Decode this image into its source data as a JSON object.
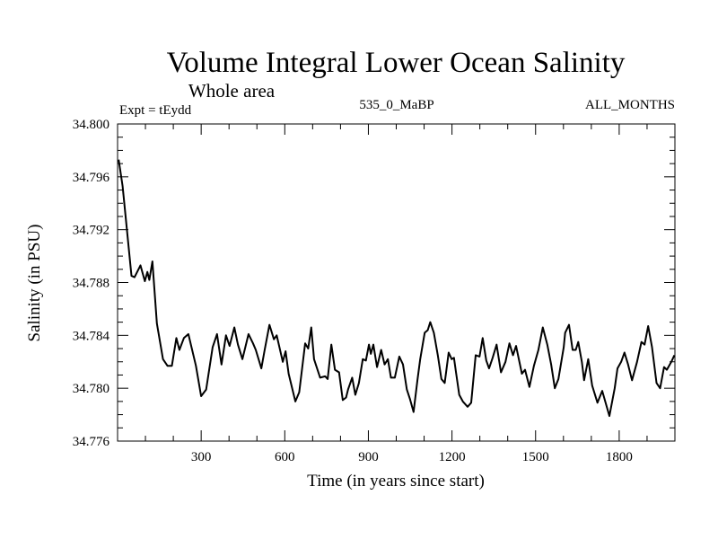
{
  "chart_data": {
    "type": "line",
    "title": "Volume Integral Lower Ocean Salinity",
    "subtitle": "Whole area",
    "annotations": {
      "experiment": "Expt = tEydd",
      "period": "535_0_MaBP",
      "months": "ALL_MONTHS"
    },
    "xlabel": "Time (in years since start)",
    "ylabel": "Salinity (in PSU)",
    "xlim": [
      0,
      2000
    ],
    "ylim": [
      34.776,
      34.8
    ],
    "x_ticks": [
      300,
      600,
      900,
      1200,
      1500,
      1800
    ],
    "x_tick_labels": [
      "300",
      "600",
      "900",
      "1200",
      "1500",
      "1800"
    ],
    "x_minor_step": 100,
    "y_ticks": [
      34.776,
      34.78,
      34.784,
      34.788,
      34.792,
      34.796,
      34.8
    ],
    "y_tick_labels": [
      "34.776",
      "34.780",
      "34.784",
      "34.788",
      "34.792",
      "34.796",
      "34.800"
    ],
    "y_minor_step": 0.001,
    "grid": false,
    "legend": "none",
    "line_color": "#000000",
    "series": [
      {
        "name": "Salinity",
        "x": [
          4,
          18,
          50,
          61,
          82,
          98,
          107,
          114,
          125,
          141,
          163,
          179,
          195,
          211,
          222,
          238,
          254,
          281,
          300,
          318,
          341,
          357,
          373,
          389,
          402,
          419,
          432,
          448,
          470,
          486,
          496,
          516,
          528,
          545,
          561,
          571,
          593,
          603,
          614,
          638,
          652,
          673,
          684,
          695,
          705,
          727,
          745,
          754,
          767,
          780,
          795,
          808,
          820,
          827,
          842,
          853,
          866,
          880,
          891,
          902,
          909,
          918,
          931,
          946,
          958,
          970,
          981,
          995,
          1011,
          1024,
          1038,
          1049,
          1062,
          1076,
          1086,
          1102,
          1113,
          1122,
          1135,
          1149,
          1162,
          1174,
          1188,
          1199,
          1207,
          1215,
          1226,
          1239,
          1256,
          1269,
          1285,
          1299,
          1310,
          1323,
          1333,
          1346,
          1360,
          1376,
          1392,
          1406,
          1419,
          1430,
          1451,
          1462,
          1478,
          1494,
          1510,
          1526,
          1542,
          1556,
          1569,
          1582,
          1601,
          1606,
          1620,
          1633,
          1644,
          1653,
          1666,
          1674,
          1689,
          1703,
          1722,
          1739,
          1765,
          1784,
          1794,
          1807,
          1819,
          1832,
          1846,
          1864,
          1880,
          1891,
          1904,
          1918,
          1934,
          1947,
          1961,
          1971,
          1987,
          1998
        ],
        "values": [
          34.7973,
          34.7953,
          34.7885,
          34.7884,
          34.7893,
          34.7881,
          34.7888,
          34.7882,
          34.7896,
          34.7849,
          34.7822,
          34.7817,
          34.7817,
          34.7838,
          34.7829,
          34.7838,
          34.7841,
          34.7817,
          34.7794,
          34.7799,
          34.7831,
          34.7841,
          34.7818,
          34.784,
          34.7832,
          34.7846,
          34.7833,
          34.7822,
          34.7841,
          34.7834,
          34.7829,
          34.7815,
          34.7829,
          34.7848,
          34.7837,
          34.784,
          34.782,
          34.7828,
          34.7811,
          34.779,
          34.7797,
          34.7834,
          34.783,
          34.7846,
          34.7822,
          34.7808,
          34.7809,
          34.7807,
          34.7833,
          34.7814,
          34.7812,
          34.7791,
          34.7793,
          34.7799,
          34.7808,
          34.7795,
          34.7804,
          34.7822,
          34.7821,
          34.7833,
          34.7826,
          34.7833,
          34.7816,
          34.7829,
          34.7818,
          34.7822,
          34.7808,
          34.7808,
          34.7824,
          34.7818,
          34.7799,
          34.7792,
          34.7782,
          34.7806,
          34.7822,
          34.7842,
          34.7844,
          34.785,
          34.7842,
          34.7825,
          34.7807,
          34.7804,
          34.7827,
          34.7822,
          34.7823,
          34.7811,
          34.7795,
          34.779,
          34.7786,
          34.7789,
          34.7825,
          34.7824,
          34.7838,
          34.7821,
          34.7815,
          34.7823,
          34.7833,
          34.7812,
          34.782,
          34.7834,
          34.7825,
          34.7832,
          34.7811,
          34.7814,
          34.7801,
          34.7817,
          34.7829,
          34.7846,
          34.7833,
          34.7818,
          34.78,
          34.7807,
          34.7831,
          34.7842,
          34.7848,
          34.7829,
          34.7829,
          34.7835,
          34.782,
          34.7806,
          34.7822,
          34.7802,
          34.7789,
          34.7798,
          34.7779,
          34.78,
          34.7815,
          34.782,
          34.7827,
          34.7818,
          34.7806,
          34.782,
          34.7835,
          34.7833,
          34.7847,
          34.7831,
          34.7804,
          34.78,
          34.7816,
          34.7814,
          34.782,
          34.7825
        ]
      }
    ]
  }
}
